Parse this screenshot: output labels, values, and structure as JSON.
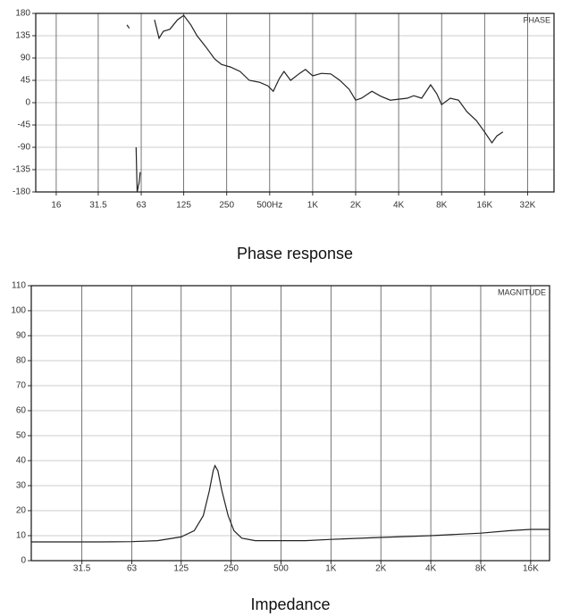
{
  "chart_data": [
    {
      "type": "line",
      "title": "Phase response",
      "annotation": "PHASE",
      "color": "#222222",
      "xlog": true,
      "grid": true,
      "xlim": [
        11.5,
        49000
      ],
      "ylim": [
        -180,
        180
      ],
      "xticks": [
        16,
        31.5,
        63,
        125,
        250,
        {
          "value": 500,
          "label": "500Hz"
        },
        {
          "value": 1000,
          "label": "1K"
        },
        {
          "value": 2000,
          "label": "2K"
        },
        {
          "value": 4000,
          "label": "4K"
        },
        {
          "value": 8000,
          "label": "8K"
        },
        {
          "value": 16000,
          "label": "16K"
        },
        {
          "value": 32000,
          "label": "32K"
        }
      ],
      "yticks": [
        180,
        135,
        90,
        45,
        0,
        -45,
        -90,
        -135,
        -180
      ],
      "x": [
        50,
        52,
        55,
        58,
        59,
        61,
        62,
        70,
        78,
        84,
        90,
        100,
        113,
        125,
        140,
        155,
        178,
        206,
        230,
        265,
        310,
        360,
        425,
        485,
        530,
        585,
        630,
        700,
        810,
        890,
        1000,
        1150,
        1340,
        1550,
        1800,
        2000,
        2200,
        2600,
        3000,
        3500,
        4000,
        4600,
        5100,
        5800,
        6700,
        7400,
        8000,
        9200,
        10500,
        12000,
        14000,
        16000,
        18000,
        19500,
        21500
      ],
      "values": [
        157,
        150,
        null,
        -90,
        -180,
        -160,
        -140,
        null,
        167,
        130,
        144,
        148,
        167,
        176,
        157,
        135,
        113,
        88,
        77,
        72,
        63,
        45,
        41,
        34,
        23,
        49,
        63,
        45,
        59,
        67,
        54,
        59,
        58,
        45,
        27,
        5,
        9,
        23,
        13,
        5,
        7,
        9,
        14,
        9,
        36,
        18,
        -4,
        9,
        5,
        -18,
        -36,
        -59,
        -81,
        -67,
        -59
      ]
    },
    {
      "type": "line",
      "title": "Impedance",
      "annotation": "MAGNITUDE",
      "color": "#222222",
      "xlog": true,
      "grid": true,
      "xlim": [
        15.6,
        20800
      ],
      "ylim": [
        0,
        110
      ],
      "xticks": [
        31.5,
        63,
        125,
        250,
        500,
        {
          "value": 1000,
          "label": "1K"
        },
        {
          "value": 2000,
          "label": "2K"
        },
        {
          "value": 4000,
          "label": "4K"
        },
        {
          "value": 8000,
          "label": "8K"
        },
        {
          "value": 16000,
          "label": "16K"
        }
      ],
      "yticks": [
        0,
        10,
        20,
        30,
        40,
        50,
        60,
        70,
        80,
        90,
        100,
        110
      ],
      "x": [
        15.6,
        40,
        63,
        90,
        125,
        150,
        170,
        185,
        195,
        200,
        208,
        220,
        240,
        260,
        290,
        350,
        500,
        700,
        1000,
        2000,
        4000,
        8000,
        12000,
        16000,
        20800
      ],
      "values": [
        7.5,
        7.5,
        7.6,
        8,
        9.5,
        12,
        18,
        28,
        36,
        38,
        36,
        28,
        18,
        12,
        9,
        8,
        8,
        8,
        8.5,
        9.3,
        10,
        11,
        12,
        12.5,
        12.5
      ]
    }
  ]
}
